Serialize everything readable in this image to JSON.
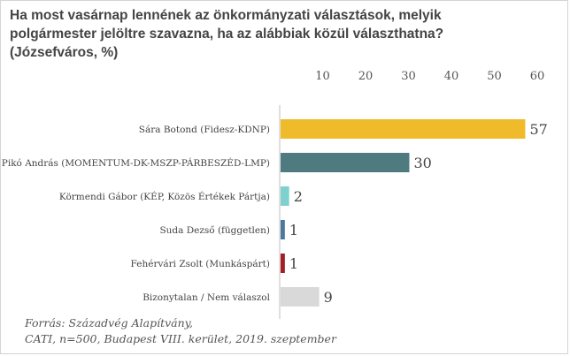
{
  "chart_data": {
    "type": "bar",
    "orientation": "horizontal",
    "title": "Ha most vasárnap lennének az önkormányzati választások, melyik polgármester jelöltre szavazna, ha az alábbiak közül választhatna? (Józsefváros, %)",
    "title_lines": [
      "Ha most vasárnap lennének az önkormányzati választások, melyik",
      "polgármester jelöltre szavazna, ha az alábbiak közül választhatna?",
      "(Józsefváros, %)"
    ],
    "categories": [
      "Sára Botond (Fidesz-KDNP)",
      "Pikó András (MOMENTUM-DK-MSZP-PÁRBESZÉD-LMP)",
      "Körmendi Gábor (KÉP, Közös Értékek Pártja)",
      "Suda Dezső (független)",
      "Fehérvári Zsolt (Munkáspárt)",
      "Bizonytalan / Nem válaszol"
    ],
    "values": [
      57,
      30,
      2,
      1,
      1,
      9
    ],
    "colors": [
      "#f0bb2b",
      "#4f7b80",
      "#7fd1cf",
      "#4d7a9c",
      "#a31f26",
      "#d9d9d9"
    ],
    "xlim": [
      0,
      60
    ],
    "xticks": [
      10,
      20,
      30,
      40,
      50,
      60
    ],
    "axis_position": "top",
    "grid": false,
    "legend": "none"
  },
  "source": {
    "line1": "Forrás: Századvég Alapítvány,",
    "line2": "CATI, n=500, Budapest VIII. kerület, 2019. szeptember"
  }
}
